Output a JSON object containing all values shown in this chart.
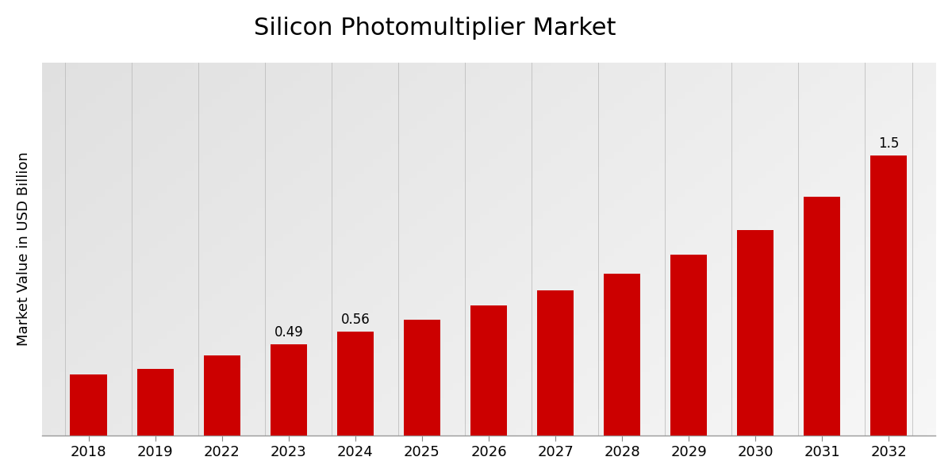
{
  "title": "Silicon Photomultiplier Market",
  "ylabel": "Market Value in USD Billion",
  "categories": [
    "2018",
    "2019",
    "2022",
    "2023",
    "2024",
    "2025",
    "2026",
    "2027",
    "2028",
    "2029",
    "2030",
    "2031",
    "2032"
  ],
  "values": [
    0.33,
    0.36,
    0.43,
    0.49,
    0.56,
    0.62,
    0.7,
    0.78,
    0.87,
    0.97,
    1.1,
    1.28,
    1.5
  ],
  "bar_color": "#CC0000",
  "background_color_top": "#EFEFEF",
  "background_color_bottom": "#D8D8D8",
  "title_fontsize": 22,
  "ylabel_fontsize": 13,
  "tick_fontsize": 13,
  "label_annotations": {
    "2023": "0.49",
    "2024": "0.56",
    "2032": "1.5"
  },
  "ylim": [
    0,
    2.0
  ],
  "grid_color": "#BBBBBB",
  "bar_width": 0.55
}
